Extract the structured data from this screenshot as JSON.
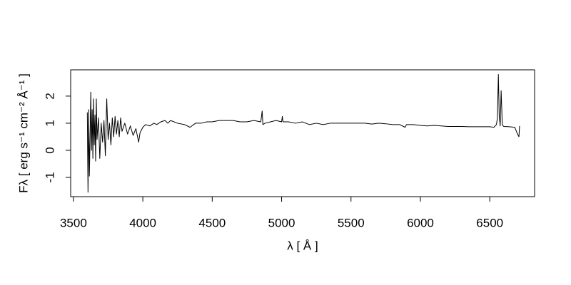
{
  "chart_data": {
    "type": "line",
    "xlabel": "λ [ Å ]",
    "ylabel": "Fλ [ erg s⁻¹ cm⁻² Å⁻¹ ]",
    "xlim": [
      3480,
      6823
    ],
    "ylim": [
      -1.71,
      2.97
    ],
    "xticks": [
      3500,
      4000,
      4500,
      5000,
      5500,
      6000,
      6500
    ],
    "yticks": [
      -1,
      0,
      1,
      2
    ],
    "grid": false,
    "series": [
      {
        "color": "#000000",
        "x": [
          3600,
          3605,
          3610,
          3615,
          3620,
          3625,
          3630,
          3635,
          3640,
          3645,
          3650,
          3655,
          3660,
          3665,
          3670,
          3680,
          3690,
          3700,
          3710,
          3720,
          3730,
          3740,
          3750,
          3760,
          3770,
          3780,
          3790,
          3800,
          3810,
          3820,
          3830,
          3840,
          3850,
          3870,
          3890,
          3910,
          3930,
          3950,
          3970,
          3980,
          4000,
          4020,
          4050,
          4080,
          4100,
          4130,
          4160,
          4180,
          4200,
          4250,
          4300,
          4340,
          4380,
          4420,
          4460,
          4500,
          4550,
          4600,
          4650,
          4700,
          4750,
          4800,
          4850,
          4860,
          4865,
          4880,
          4920,
          4960,
          5000,
          5005,
          5010,
          5050,
          5100,
          5150,
          5200,
          5250,
          5300,
          5350,
          5400,
          5450,
          5500,
          5550,
          5600,
          5650,
          5700,
          5750,
          5800,
          5850,
          5890,
          5900,
          5950,
          6000,
          6050,
          6100,
          6150,
          6200,
          6250,
          6300,
          6350,
          6400,
          6450,
          6500,
          6530,
          6548,
          6555,
          6562,
          6568,
          6575,
          6582,
          6590,
          6600,
          6640,
          6680,
          6700,
          6710,
          6715
        ],
        "values": [
          1.4,
          -1.55,
          1.5,
          -0.95,
          0.5,
          2.15,
          0.0,
          1.5,
          -0.3,
          1.9,
          0.2,
          1.3,
          -0.4,
          1.9,
          0.4,
          1.2,
          -0.3,
          1.0,
          0.3,
          1.1,
          -0.2,
          1.9,
          0.4,
          1.0,
          0.2,
          1.2,
          0.5,
          1.25,
          0.6,
          1.1,
          0.5,
          1.2,
          0.7,
          1.0,
          0.6,
          0.9,
          0.55,
          0.8,
          0.3,
          0.65,
          0.85,
          0.95,
          0.9,
          1.0,
          0.95,
          1.05,
          1.1,
          1.0,
          1.1,
          1.0,
          0.95,
          0.85,
          1.0,
          1.0,
          1.05,
          1.05,
          1.1,
          1.1,
          1.1,
          1.05,
          1.05,
          1.1,
          1.05,
          1.45,
          0.95,
          1.0,
          1.05,
          1.1,
          1.05,
          1.25,
          1.05,
          1.05,
          1.0,
          1.05,
          0.95,
          1.0,
          0.95,
          1.0,
          1.0,
          1.0,
          1.0,
          1.0,
          1.0,
          0.97,
          1.0,
          0.98,
          0.95,
          0.95,
          0.85,
          0.95,
          0.95,
          0.92,
          0.9,
          0.92,
          0.9,
          0.88,
          0.88,
          0.88,
          0.87,
          0.87,
          0.87,
          0.87,
          0.85,
          0.95,
          1.2,
          2.8,
          1.3,
          0.9,
          2.2,
          0.95,
          0.88,
          0.87,
          0.85,
          0.6,
          0.5,
          0.9
        ]
      }
    ]
  }
}
